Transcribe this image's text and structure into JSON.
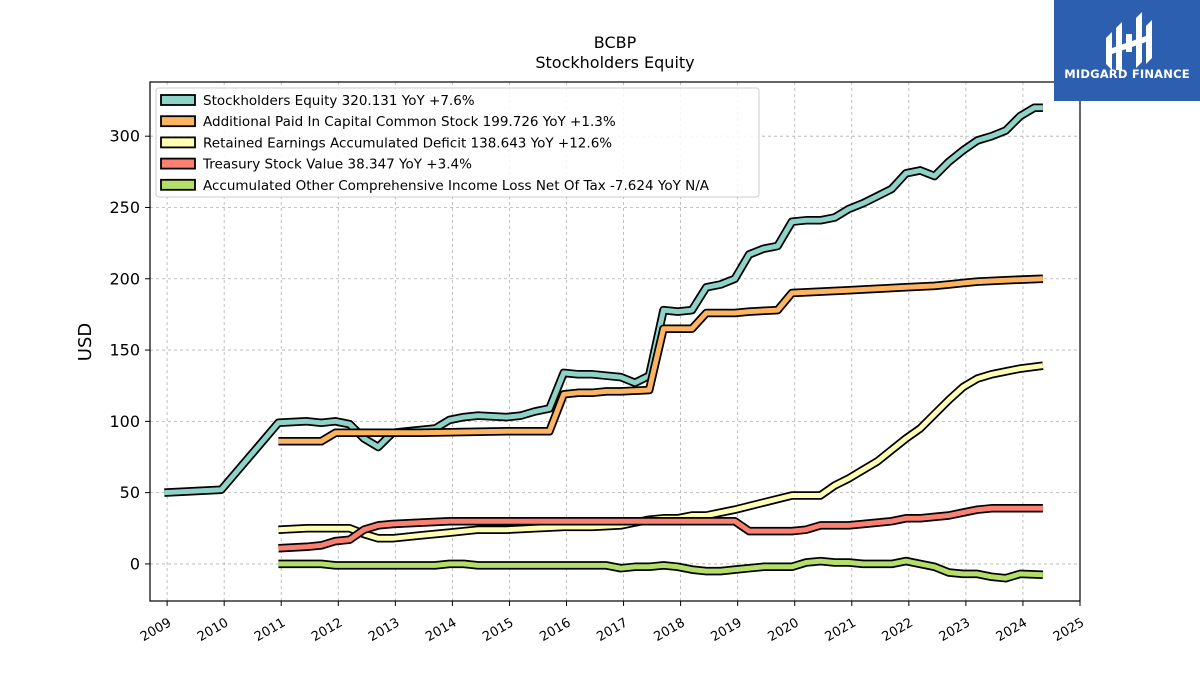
{
  "logo": {
    "text": "MIDGARD FINANCE"
  },
  "chart_data": {
    "type": "line",
    "title": "BCBP",
    "subtitle": "Stockholders  Equity",
    "xlabel": "",
    "ylabel": "USD",
    "xlim": [
      2008.7,
      2025.0
    ],
    "ylim": [
      -26,
      338
    ],
    "xticks": [
      "2009",
      "2010",
      "2011",
      "2012",
      "2013",
      "2014",
      "2015",
      "2016",
      "2017",
      "2018",
      "2019",
      "2020",
      "2021",
      "2022",
      "2023",
      "2024",
      "2025"
    ],
    "yticks": [
      0,
      50,
      100,
      150,
      200,
      250,
      300
    ],
    "grid": true,
    "legend_position": "top-left",
    "series": [
      {
        "name": "Stockholders Equity  320.131 YoY +7.6%",
        "color": "#8dd3c7",
        "points": [
          [
            2008.95,
            50
          ],
          [
            2009.95,
            52
          ],
          [
            2010.95,
            99
          ],
          [
            2011.45,
            100
          ],
          [
            2011.7,
            99
          ],
          [
            2011.95,
            100
          ],
          [
            2012.2,
            98
          ],
          [
            2012.45,
            88
          ],
          [
            2012.7,
            82
          ],
          [
            2012.95,
            92
          ],
          [
            2013.2,
            93
          ],
          [
            2013.7,
            95
          ],
          [
            2013.95,
            101
          ],
          [
            2014.2,
            103
          ],
          [
            2014.45,
            104
          ],
          [
            2014.95,
            103
          ],
          [
            2015.2,
            104
          ],
          [
            2015.45,
            107
          ],
          [
            2015.7,
            109
          ],
          [
            2015.95,
            134
          ],
          [
            2016.2,
            133
          ],
          [
            2016.45,
            133
          ],
          [
            2016.7,
            132
          ],
          [
            2016.95,
            131
          ],
          [
            2017.2,
            127
          ],
          [
            2017.45,
            132
          ],
          [
            2017.7,
            178
          ],
          [
            2017.95,
            177
          ],
          [
            2018.2,
            178
          ],
          [
            2018.45,
            194
          ],
          [
            2018.7,
            196
          ],
          [
            2018.95,
            200
          ],
          [
            2019.2,
            217
          ],
          [
            2019.45,
            221
          ],
          [
            2019.7,
            223
          ],
          [
            2019.95,
            240
          ],
          [
            2020.2,
            241
          ],
          [
            2020.45,
            241
          ],
          [
            2020.7,
            243
          ],
          [
            2020.95,
            249
          ],
          [
            2021.2,
            253
          ],
          [
            2021.45,
            258
          ],
          [
            2021.7,
            263
          ],
          [
            2021.95,
            274
          ],
          [
            2022.2,
            276
          ],
          [
            2022.45,
            272
          ],
          [
            2022.7,
            282
          ],
          [
            2022.95,
            290
          ],
          [
            2023.2,
            297
          ],
          [
            2023.45,
            300
          ],
          [
            2023.7,
            304
          ],
          [
            2023.95,
            314
          ],
          [
            2024.2,
            320
          ],
          [
            2024.35,
            320
          ]
        ]
      },
      {
        "name": "Additional Paid In Capital Common Stock  199.726 YoY +1.3%",
        "color": "#fdb462",
        "points": [
          [
            2010.95,
            86
          ],
          [
            2011.7,
            86
          ],
          [
            2011.95,
            92
          ],
          [
            2012.45,
            92
          ],
          [
            2013.45,
            92
          ],
          [
            2014.95,
            93
          ],
          [
            2015.7,
            93
          ],
          [
            2015.95,
            119
          ],
          [
            2016.2,
            120
          ],
          [
            2016.45,
            120
          ],
          [
            2016.7,
            121
          ],
          [
            2016.95,
            121
          ],
          [
            2017.45,
            122
          ],
          [
            2017.7,
            165
          ],
          [
            2018.2,
            165
          ],
          [
            2018.45,
            176
          ],
          [
            2018.7,
            176
          ],
          [
            2018.95,
            176
          ],
          [
            2019.2,
            177
          ],
          [
            2019.7,
            178
          ],
          [
            2019.95,
            190
          ],
          [
            2020.45,
            191
          ],
          [
            2020.95,
            192
          ],
          [
            2021.45,
            193
          ],
          [
            2021.95,
            194
          ],
          [
            2022.45,
            195
          ],
          [
            2022.7,
            196
          ],
          [
            2022.95,
            197
          ],
          [
            2023.2,
            198
          ],
          [
            2023.7,
            199
          ],
          [
            2024.35,
            200
          ]
        ]
      },
      {
        "name": "Retained Earnings Accumulated Deficit  138.643 YoY +12.6%",
        "color": "#ffffb3",
        "points": [
          [
            2010.95,
            24
          ],
          [
            2011.45,
            25
          ],
          [
            2011.7,
            25
          ],
          [
            2011.95,
            25
          ],
          [
            2012.2,
            25
          ],
          [
            2012.45,
            21
          ],
          [
            2012.7,
            18
          ],
          [
            2012.95,
            18
          ],
          [
            2013.45,
            20
          ],
          [
            2013.95,
            22
          ],
          [
            2014.45,
            24
          ],
          [
            2014.95,
            24
          ],
          [
            2015.45,
            25
          ],
          [
            2015.95,
            26
          ],
          [
            2016.45,
            26
          ],
          [
            2016.95,
            27
          ],
          [
            2017.45,
            31
          ],
          [
            2017.7,
            32
          ],
          [
            2017.95,
            32
          ],
          [
            2018.2,
            34
          ],
          [
            2018.45,
            34
          ],
          [
            2018.7,
            36
          ],
          [
            2018.95,
            38
          ],
          [
            2019.45,
            43
          ],
          [
            2019.95,
            48
          ],
          [
            2020.45,
            48
          ],
          [
            2020.7,
            55
          ],
          [
            2020.95,
            60
          ],
          [
            2021.2,
            66
          ],
          [
            2021.45,
            72
          ],
          [
            2021.7,
            80
          ],
          [
            2021.95,
            88
          ],
          [
            2022.2,
            95
          ],
          [
            2022.45,
            105
          ],
          [
            2022.7,
            115
          ],
          [
            2022.95,
            124
          ],
          [
            2023.2,
            130
          ],
          [
            2023.45,
            133
          ],
          [
            2023.7,
            135
          ],
          [
            2023.95,
            137
          ],
          [
            2024.35,
            139
          ]
        ]
      },
      {
        "name": "Treasury Stock Value  38.347 YoY +3.4%",
        "color": "#fb8072",
        "points": [
          [
            2010.95,
            11
          ],
          [
            2011.45,
            12
          ],
          [
            2011.7,
            13
          ],
          [
            2011.95,
            16
          ],
          [
            2012.2,
            17
          ],
          [
            2012.45,
            24
          ],
          [
            2012.7,
            27
          ],
          [
            2012.95,
            28
          ],
          [
            2013.45,
            29
          ],
          [
            2013.95,
            30
          ],
          [
            2014.45,
            30
          ],
          [
            2014.95,
            30
          ],
          [
            2015.45,
            30
          ],
          [
            2015.95,
            30
          ],
          [
            2016.45,
            30
          ],
          [
            2016.95,
            30
          ],
          [
            2017.45,
            30
          ],
          [
            2017.95,
            30
          ],
          [
            2018.45,
            30
          ],
          [
            2018.95,
            30
          ],
          [
            2019.2,
            23
          ],
          [
            2019.7,
            23
          ],
          [
            2019.95,
            23
          ],
          [
            2020.2,
            24
          ],
          [
            2020.45,
            27
          ],
          [
            2020.95,
            27
          ],
          [
            2021.2,
            28
          ],
          [
            2021.45,
            29
          ],
          [
            2021.7,
            30
          ],
          [
            2021.95,
            32
          ],
          [
            2022.2,
            32
          ],
          [
            2022.45,
            33
          ],
          [
            2022.7,
            34
          ],
          [
            2022.95,
            36
          ],
          [
            2023.2,
            38
          ],
          [
            2023.45,
            39
          ],
          [
            2023.95,
            39
          ],
          [
            2024.35,
            39
          ]
        ]
      },
      {
        "name": "Accumulated Other Comprehensive Income Loss Net Of Tax  -7.624 YoY N/A",
        "color": "#b3de69",
        "points": [
          [
            2010.95,
            0
          ],
          [
            2011.7,
            0
          ],
          [
            2011.95,
            -1
          ],
          [
            2012.45,
            -1
          ],
          [
            2012.95,
            -1
          ],
          [
            2013.45,
            -1
          ],
          [
            2013.7,
            -1
          ],
          [
            2013.95,
            0
          ],
          [
            2014.2,
            0
          ],
          [
            2014.45,
            -1
          ],
          [
            2014.7,
            -1
          ],
          [
            2014.95,
            -1
          ],
          [
            2015.45,
            -1
          ],
          [
            2015.7,
            -1
          ],
          [
            2015.95,
            -1
          ],
          [
            2016.45,
            -1
          ],
          [
            2016.7,
            -1
          ],
          [
            2016.95,
            -3
          ],
          [
            2017.2,
            -2
          ],
          [
            2017.45,
            -2
          ],
          [
            2017.7,
            -1
          ],
          [
            2017.95,
            -2
          ],
          [
            2018.2,
            -4
          ],
          [
            2018.45,
            -5
          ],
          [
            2018.7,
            -5
          ],
          [
            2018.95,
            -4
          ],
          [
            2019.2,
            -3
          ],
          [
            2019.45,
            -2
          ],
          [
            2019.7,
            -2
          ],
          [
            2019.95,
            -2
          ],
          [
            2020.2,
            1
          ],
          [
            2020.45,
            2
          ],
          [
            2020.7,
            1
          ],
          [
            2020.95,
            1
          ],
          [
            2021.2,
            0
          ],
          [
            2021.45,
            0
          ],
          [
            2021.7,
            0
          ],
          [
            2021.95,
            2
          ],
          [
            2022.2,
            0
          ],
          [
            2022.45,
            -2
          ],
          [
            2022.7,
            -6
          ],
          [
            2022.95,
            -7
          ],
          [
            2023.2,
            -7
          ],
          [
            2023.45,
            -9
          ],
          [
            2023.7,
            -10
          ],
          [
            2023.95,
            -7
          ],
          [
            2024.35,
            -7.6
          ]
        ]
      }
    ]
  }
}
